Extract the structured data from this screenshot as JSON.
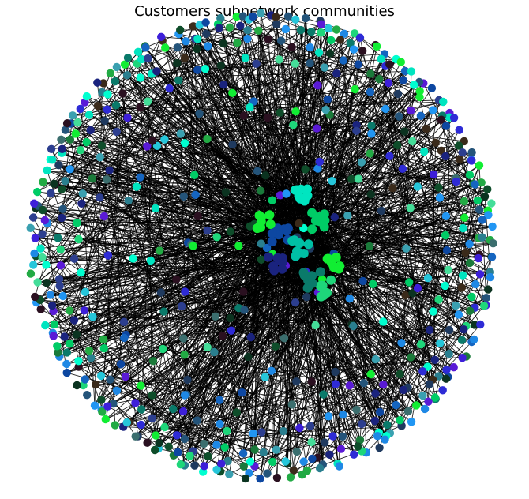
{
  "figure": {
    "title": "Customers subnetwork communities"
  },
  "graph": {
    "layout": "spring",
    "edge_color": "#000000",
    "community_colors": [
      "#00e5c0",
      "#00cc66",
      "#11ee33",
      "#1ed67a",
      "#22aa44",
      "#1a7a3a",
      "#0e4d2a",
      "#0b3320",
      "#1565c0",
      "#1e88e5",
      "#2196f3",
      "#0d47a1",
      "#1a237e",
      "#2e2bd6",
      "#3d1fd9",
      "#5a1ad6",
      "#2c3e8f",
      "#24547a",
      "#2a7f8f",
      "#3aa0b0",
      "#26c6da",
      "#00ffd0",
      "#44dd99",
      "#0a7a6a",
      "#3a2a1a",
      "#2a1020",
      "#1f3a5f",
      "#3b6e6e"
    ]
  }
}
